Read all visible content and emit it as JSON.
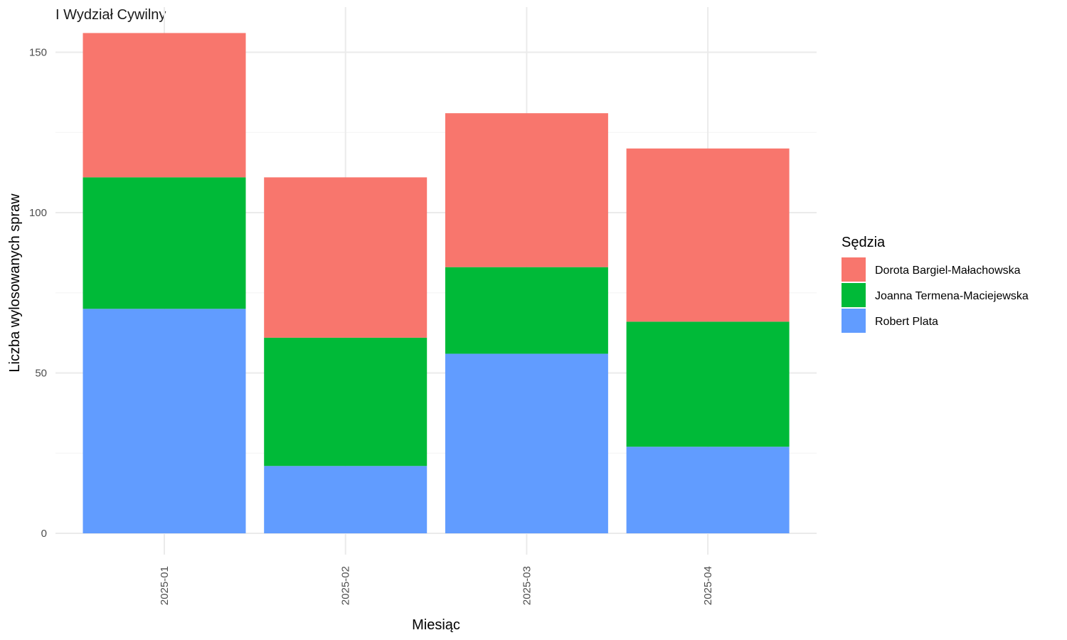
{
  "chart_data": {
    "type": "bar",
    "stacked": true,
    "title": "I Wydział Cywilny",
    "xlabel": "Miesiąc",
    "ylabel": "Liczba wylosowanych spraw",
    "categories": [
      "2025-01",
      "2025-02",
      "2025-03",
      "2025-04"
    ],
    "ylim": [
      0,
      160
    ],
    "yticks": [
      0,
      50,
      100,
      150
    ],
    "grid": true,
    "legend": {
      "title": "Sędzia",
      "placement": "right"
    },
    "series": [
      {
        "name": "Robert Plata",
        "color": "#619CFF",
        "values": [
          70,
          21,
          56,
          27
        ]
      },
      {
        "name": "Joanna Termena-Maciejewska",
        "color": "#00BA38",
        "values": [
          41,
          40,
          27,
          39
        ]
      },
      {
        "name": "Dorota Bargiel-Małachowska",
        "color": "#F8766D",
        "values": [
          45,
          50,
          48,
          54
        ]
      }
    ],
    "legend_order": [
      "Dorota Bargiel-Małachowska",
      "Joanna Termena-Maciejewska",
      "Robert Plata"
    ]
  }
}
